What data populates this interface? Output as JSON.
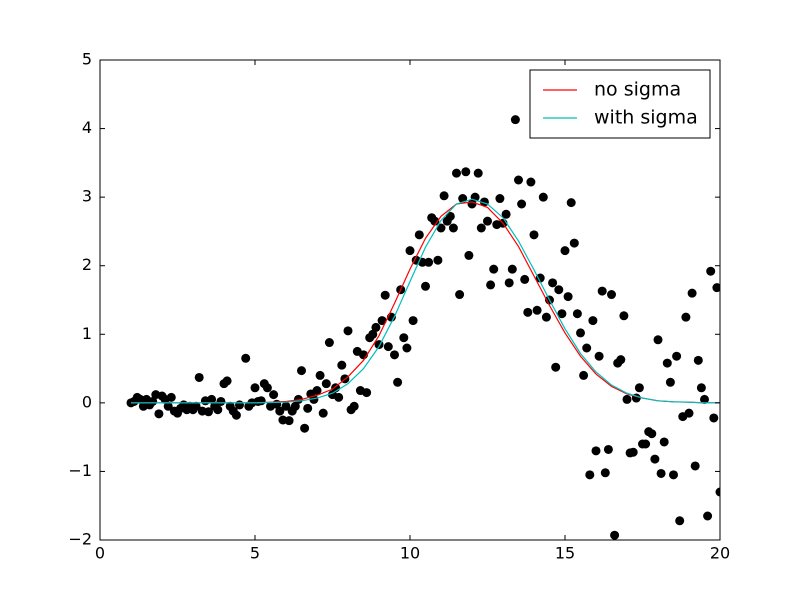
{
  "chart_data": {
    "type": "line",
    "xlim": [
      0,
      20
    ],
    "ylim": [
      -2,
      5
    ],
    "xticks": [
      0,
      5,
      10,
      15,
      20
    ],
    "yticks": [
      {
        "value": -2,
        "label": "−2"
      },
      {
        "value": -1,
        "label": "−1"
      },
      0,
      1,
      2,
      3,
      4,
      5
    ],
    "legend": "upper right",
    "x": [
      1,
      1.5,
      2,
      2.5,
      3,
      3.5,
      4,
      4.5,
      5,
      5.5,
      6,
      6.5,
      7,
      7.5,
      8,
      8.5,
      9,
      9.5,
      10,
      10.5,
      11,
      11.5,
      12,
      12.5,
      13,
      13.5,
      14,
      14.5,
      15,
      15.5,
      16,
      16.5,
      17,
      17.5,
      18,
      18.5,
      19,
      19.5,
      20
    ],
    "series": [
      {
        "name": "no sigma",
        "color": "#ff0000",
        "values": [
          0,
          0,
          0,
          0,
          0,
          0,
          0,
          0,
          0,
          0.01,
          0.02,
          0.05,
          0.11,
          0.2,
          0.38,
          0.62,
          0.98,
          1.45,
          1.95,
          2.4,
          2.72,
          2.9,
          2.93,
          2.85,
          2.62,
          2.28,
          1.85,
          1.42,
          1.02,
          0.68,
          0.42,
          0.24,
          0.13,
          0.07,
          0.03,
          0.015,
          0.01,
          0,
          0
        ]
      },
      {
        "name": "with sigma",
        "color": "#00bfbf",
        "values": [
          0,
          0,
          0,
          0,
          0,
          0,
          0,
          0,
          0,
          0.005,
          0.01,
          0.03,
          0.07,
          0.14,
          0.28,
          0.5,
          0.82,
          1.26,
          1.77,
          2.27,
          2.66,
          2.9,
          2.97,
          2.9,
          2.7,
          2.36,
          1.94,
          1.5,
          1.08,
          0.72,
          0.45,
          0.26,
          0.14,
          0.07,
          0.03,
          0.015,
          0.01,
          0,
          0
        ]
      }
    ],
    "points": {
      "color": "#000000",
      "x": [
        1.0,
        1.1,
        1.2,
        1.3,
        1.4,
        1.5,
        1.6,
        1.7,
        1.8,
        1.9,
        2.0,
        2.1,
        2.2,
        2.3,
        2.4,
        2.5,
        2.6,
        2.7,
        2.8,
        2.9,
        3.0,
        3.1,
        3.2,
        3.3,
        3.4,
        3.5,
        3.6,
        3.7,
        3.8,
        3.9,
        4.0,
        4.1,
        4.2,
        4.3,
        4.4,
        4.5,
        4.7,
        4.8,
        4.9,
        5.0,
        5.1,
        5.2,
        5.3,
        5.4,
        5.5,
        5.6,
        5.7,
        5.8,
        5.9,
        6.0,
        6.1,
        6.2,
        6.3,
        6.4,
        6.5,
        6.6,
        6.7,
        6.8,
        6.9,
        7.0,
        7.1,
        7.2,
        7.3,
        7.4,
        7.5,
        7.6,
        7.7,
        7.8,
        7.9,
        8.0,
        8.1,
        8.2,
        8.3,
        8.4,
        8.5,
        8.6,
        8.7,
        8.8,
        8.9,
        9.0,
        9.1,
        9.2,
        9.3,
        9.4,
        9.5,
        9.6,
        9.7,
        9.8,
        9.9,
        10.0,
        10.1,
        10.2,
        10.3,
        10.4,
        10.5,
        10.6,
        10.7,
        10.8,
        10.9,
        11.0,
        11.1,
        11.2,
        11.3,
        11.4,
        11.5,
        11.6,
        11.7,
        11.8,
        11.9,
        12.0,
        12.1,
        12.2,
        12.3,
        12.4,
        12.5,
        12.6,
        12.7,
        12.8,
        12.9,
        13.0,
        13.1,
        13.2,
        13.3,
        13.4,
        13.5,
        13.6,
        13.7,
        13.8,
        13.9,
        14.0,
        14.1,
        14.2,
        14.3,
        14.4,
        14.5,
        14.6,
        14.7,
        14.8,
        14.9,
        15.0,
        15.1,
        15.2,
        15.3,
        15.4,
        15.5,
        15.6,
        15.7,
        15.8,
        15.9,
        16.0,
        16.1,
        16.2,
        16.3,
        16.4,
        16.5,
        16.6,
        16.7,
        16.8,
        16.9,
        17.0,
        17.1,
        17.2,
        17.3,
        17.4,
        17.5,
        17.6,
        17.7,
        17.8,
        17.9,
        18.0,
        18.1,
        18.2,
        18.3,
        18.4,
        18.5,
        18.6,
        18.7,
        18.8,
        18.9,
        19.0,
        19.1,
        19.2,
        19.3,
        19.4,
        19.5,
        19.6,
        19.7,
        19.8,
        19.9,
        20.0
      ],
      "y": [
        0.0,
        0.02,
        0.08,
        0.05,
        -0.05,
        0.05,
        -0.03,
        0.02,
        0.12,
        -0.16,
        0.1,
        0.05,
        -0.05,
        0.08,
        -0.12,
        -0.15,
        -0.08,
        -0.03,
        -0.1,
        -0.05,
        -0.1,
        -0.05,
        0.37,
        -0.12,
        0.03,
        -0.13,
        0.05,
        -0.05,
        -0.1,
        0.02,
        0.28,
        0.32,
        -0.05,
        -0.12,
        -0.18,
        -0.03,
        0.65,
        -0.05,
        0.0,
        0.22,
        0.02,
        0.03,
        0.28,
        0.22,
        -0.05,
        0.12,
        -0.02,
        -0.12,
        -0.25,
        -0.05,
        -0.26,
        -0.12,
        -0.05,
        0.05,
        0.47,
        -0.37,
        -0.08,
        0.13,
        0.05,
        0.18,
        0.4,
        -0.15,
        0.28,
        0.88,
        0.12,
        0.22,
        0.08,
        0.55,
        0.35,
        1.05,
        -0.1,
        -0.05,
        0.75,
        0.18,
        0.7,
        0.15,
        0.95,
        1.0,
        1.1,
        0.85,
        1.2,
        1.57,
        0.82,
        1.25,
        0.7,
        0.3,
        1.65,
        0.95,
        0.8,
        2.22,
        1.2,
        2.08,
        2.45,
        2.05,
        1.7,
        2.05,
        2.7,
        2.65,
        2.08,
        2.55,
        3.02,
        2.65,
        2.72,
        2.55,
        3.35,
        1.58,
        2.98,
        3.37,
        2.15,
        2.9,
        3.0,
        3.35,
        2.55,
        2.93,
        2.65,
        1.72,
        1.95,
        2.6,
        2.98,
        2.62,
        2.75,
        1.75,
        1.95,
        4.13,
        3.25,
        2.9,
        1.8,
        1.32,
        3.22,
        2.45,
        1.35,
        1.82,
        3.0,
        1.25,
        1.5,
        1.75,
        0.52,
        1.65,
        1.3,
        2.22,
        1.55,
        2.92,
        2.33,
        1.3,
        1.02,
        0.4,
        0.8,
        -1.05,
        1.2,
        -0.7,
        0.68,
        1.63,
        -1.02,
        -0.68,
        1.58,
        -1.93,
        0.58,
        0.63,
        1.27,
        0.05,
        -0.73,
        -0.72,
        0.07,
        0.22,
        -0.6,
        -0.6,
        -0.42,
        -0.45,
        -0.82,
        0.92,
        -1.03,
        -0.57,
        0.58,
        0.3,
        -1.05,
        0.68,
        -1.72,
        -0.2,
        1.25,
        -0.15,
        1.6,
        -0.92,
        0.62,
        0.22,
        0.05,
        -1.65,
        1.92,
        -0.22,
        1.68,
        -1.3
      ]
    }
  }
}
